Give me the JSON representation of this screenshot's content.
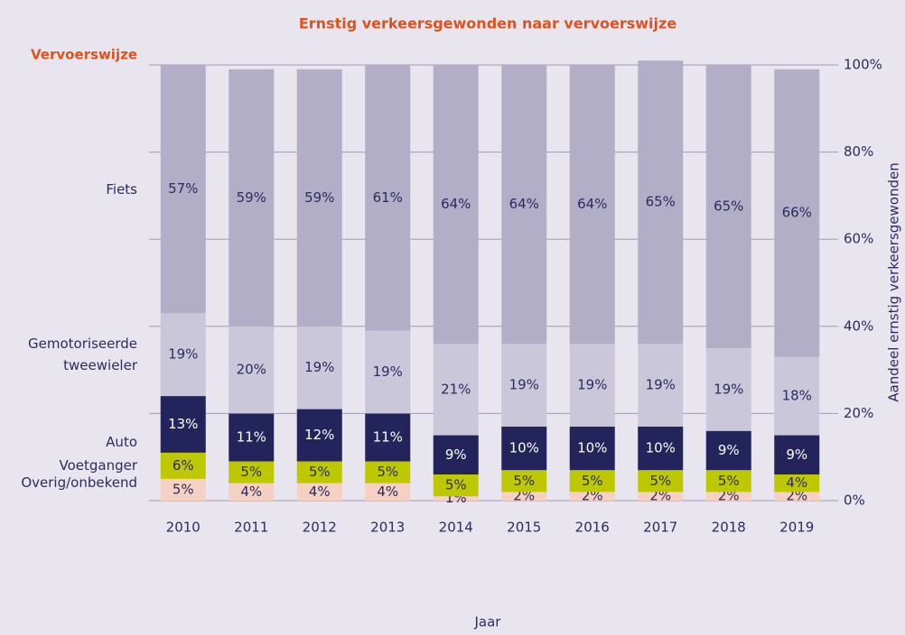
{
  "chart_data": {
    "type": "stacked-bar",
    "title": "Ernstig verkeersgewonden naar vervoerswijze",
    "legend_title": "Vervoerswijze",
    "x_label": "Jaar",
    "y_label": "Aandeel ernstig verkeersgewonden",
    "categories": [
      "2010",
      "2011",
      "2012",
      "2013",
      "2014",
      "2015",
      "2016",
      "2017",
      "2018",
      "2019"
    ],
    "series": [
      {
        "name": "Overig/onbekend",
        "color": "#f6d0c2",
        "values": [
          5,
          4,
          4,
          4,
          1,
          2,
          2,
          2,
          2,
          2
        ],
        "value_labels": [
          "5%",
          "4%",
          "4%",
          "4%",
          "1%",
          "2%",
          "2%",
          "2%",
          "2%",
          "2%"
        ]
      },
      {
        "name": "Voetganger",
        "color": "#bdc800",
        "values": [
          6,
          5,
          5,
          5,
          5,
          5,
          5,
          5,
          5,
          4
        ],
        "value_labels": [
          "6%",
          "5%",
          "5%",
          "5%",
          "5%",
          "5%",
          "5%",
          "5%",
          "5%",
          "4%"
        ]
      },
      {
        "name": "Auto",
        "color": "#24245c",
        "values": [
          13,
          11,
          12,
          11,
          9,
          10,
          10,
          10,
          9,
          9
        ],
        "value_labels": [
          "13%",
          "11%",
          "12%",
          "11%",
          "9%",
          "10%",
          "10%",
          "10%",
          "9%",
          "9%"
        ]
      },
      {
        "name": "Gemotoriseerde tweewieler",
        "color": "#cbc7da",
        "values": [
          19,
          20,
          19,
          19,
          21,
          19,
          19,
          19,
          19,
          18
        ],
        "value_labels": [
          "19%",
          "20%",
          "19%",
          "19%",
          "21%",
          "19%",
          "19%",
          "19%",
          "19%",
          "18%"
        ]
      },
      {
        "name": "Fiets",
        "color": "#b3aec7",
        "values": [
          57,
          59,
          59,
          61,
          64,
          64,
          64,
          65,
          65,
          66
        ],
        "value_labels": [
          "57%",
          "59%",
          "59%",
          "61%",
          "64%",
          "64%",
          "64%",
          "65%",
          "65%",
          "66%"
        ]
      }
    ],
    "ylim": [
      0,
      100
    ],
    "yticks": [
      {
        "value": 0,
        "label": "0%"
      },
      {
        "value": 20,
        "label": "20%"
      },
      {
        "value": 40,
        "label": "40%"
      },
      {
        "value": 60,
        "label": "60%"
      },
      {
        "value": 80,
        "label": "80%"
      },
      {
        "value": 100,
        "label": "100%"
      }
    ],
    "grid": true
  }
}
